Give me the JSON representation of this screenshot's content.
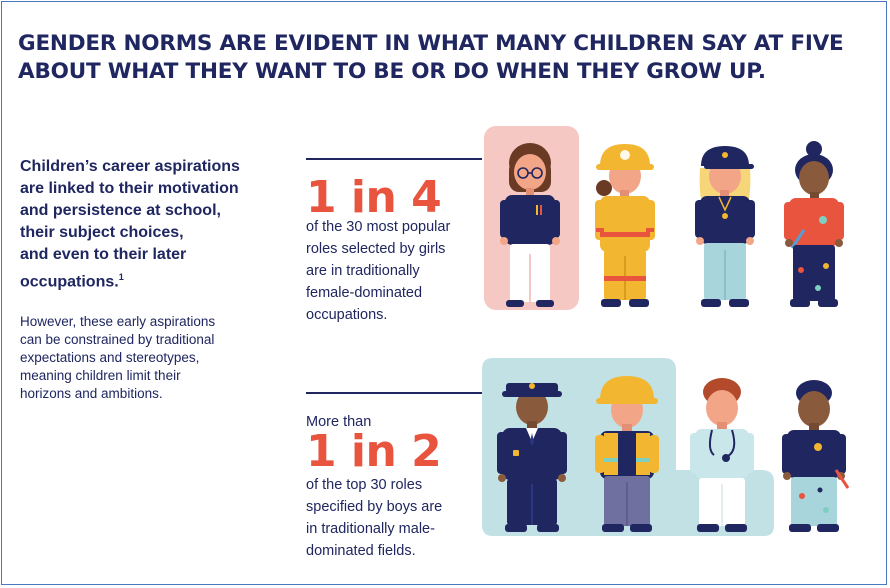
{
  "title": {
    "line1": "GENDER NORMS ARE EVIDENT IN WHAT MANY CHILDREN SAY AT FIVE",
    "line2": "ABOUT WHAT THEY WANT TO BE OR DO WHEN THEY GROW UP."
  },
  "lead": {
    "lines": [
      "Children’s career aspirations",
      "are linked to their motivation",
      "and persistence at school,",
      "their subject choices,",
      "and even to their later"
    ],
    "last_line": "occupations.",
    "footnote": "1"
  },
  "body": {
    "lines": [
      "However, these early aspirations",
      "can be constrained by traditional",
      "expectations and stereotypes,",
      "meaning children limit their",
      "horizons and ambitions."
    ]
  },
  "girls_stat": {
    "figure": "1 in 4",
    "lines": [
      "of the 30 most popular",
      "roles selected by girls",
      "are in traditionally",
      "female-dominated",
      "occupations."
    ]
  },
  "boys_stat": {
    "prefix": "More than",
    "figure": "1 in 2",
    "lines": [
      "of the top 30 roles",
      "specified by boys are",
      "in traditionally male-",
      "dominated fields."
    ]
  },
  "colors": {
    "navy": "#1f2660",
    "accent": "#e8543e",
    "pink_panel": "#f6c8c4",
    "blue_panel": "#c2e1e5"
  },
  "figures": {
    "girls": [
      "scientist-girl-icon",
      "firefighter-girl-icon",
      "police-girl-icon",
      "artist-girl-icon"
    ],
    "boys": [
      "police-officer-boy-icon",
      "construction-worker-boy-icon",
      "doctor-boy-icon",
      "painter-boy-icon"
    ]
  }
}
